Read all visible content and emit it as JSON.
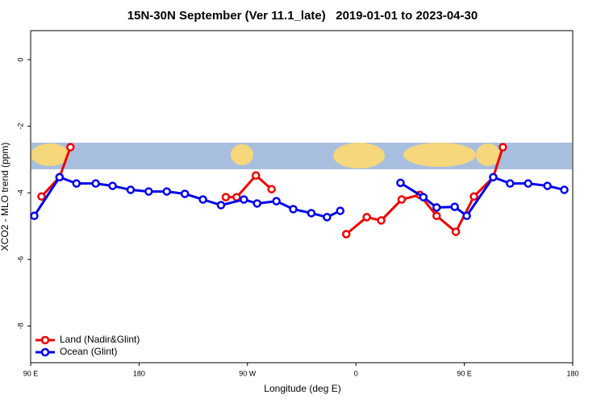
{
  "chart_data": {
    "type": "line",
    "title": "15N-30N September (Ver 11.1_late)   2019-01-01 to 2023-04-30",
    "x_label": "Longitude (deg E)",
    "y_label": "XCO2 - MLO trend (ppm)",
    "xlim": [
      90,
      540
    ],
    "xticks": [
      {
        "value": 90,
        "label": "90 E"
      },
      {
        "value": 180,
        "label": "180"
      },
      {
        "value": 270,
        "label": "90 W"
      },
      {
        "value": 360,
        "label": "0"
      },
      {
        "value": 450,
        "label": "90 E"
      },
      {
        "value": 540,
        "label": "180"
      }
    ],
    "ylim": [
      -9.1,
      0.87
    ],
    "yticks": [
      0,
      -2,
      -4,
      -6,
      -8
    ],
    "legend": "bottom-left",
    "series": [
      {
        "name": "Land (Nadir&Glint)",
        "color": "#ee0000",
        "x": [
          99,
          114,
          123,
          null,
          252,
          261,
          277,
          290,
          null,
          352,
          369,
          381,
          398,
          413,
          427,
          443,
          458,
          474,
          482
        ],
        "values": [
          -4.11,
          -3.53,
          -2.63,
          null,
          -4.13,
          -4.13,
          -3.48,
          -3.89,
          null,
          -5.24,
          -4.73,
          -4.83,
          -4.2,
          -4.06,
          -4.69,
          -5.17,
          -4.11,
          -3.53,
          -2.63
        ]
      },
      {
        "name": "Ocean (Glint)",
        "color": "#0000ee",
        "x": [
          93,
          114,
          128,
          144,
          158,
          173,
          188,
          203,
          218,
          233,
          248,
          267,
          278,
          294,
          308,
          323,
          336,
          347,
          null,
          397,
          416,
          427,
          442,
          452,
          474,
          488,
          503,
          519,
          533
        ],
        "values": [
          -4.69,
          -3.53,
          -3.72,
          -3.72,
          -3.79,
          -3.91,
          -3.96,
          -3.96,
          -4.03,
          -4.2,
          -4.37,
          -4.2,
          -4.32,
          -4.25,
          -4.49,
          -4.61,
          -4.73,
          -4.54,
          null,
          -3.7,
          -4.13,
          -4.44,
          -4.42,
          -4.69,
          -3.53,
          -3.72,
          -3.72,
          -3.79,
          -3.91
        ]
      }
    ]
  }
}
